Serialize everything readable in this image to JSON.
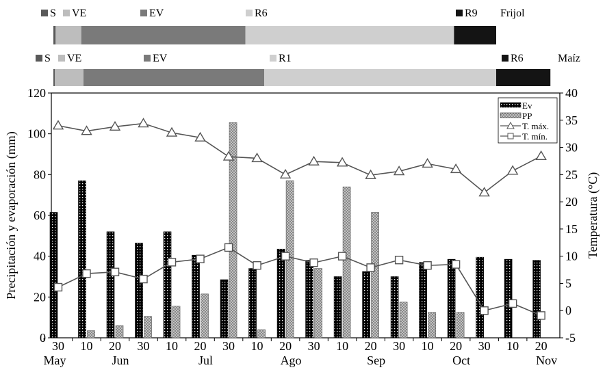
{
  "stage_bars": [
    {
      "crop": "Frijol",
      "stages": [
        {
          "label": "S",
          "color": "#595959",
          "start": 0.0,
          "end": 0.3
        },
        {
          "label": "VE",
          "color": "#bdbdbd",
          "start": 0.3,
          "end": 3.7
        },
        {
          "label": "EV",
          "color": "#7a7a7a",
          "start": 3.7,
          "end": 25.5
        },
        {
          "label": "R6",
          "color": "#cfcfcf",
          "start": 25.5,
          "end": 53.2
        },
        {
          "label": "R9",
          "color": "#141414",
          "start": 53.2,
          "end": 58.8
        }
      ]
    },
    {
      "crop": "Maíz",
      "stages": [
        {
          "label": "S",
          "color": "#595959",
          "start": 0.0,
          "end": 0.2
        },
        {
          "label": "VE",
          "color": "#bdbdbd",
          "start": 0.2,
          "end": 4.0
        },
        {
          "label": "EV",
          "color": "#7a7a7a",
          "start": 4.0,
          "end": 28.0
        },
        {
          "label": "R1",
          "color": "#cfcfcf",
          "start": 28.0,
          "end": 58.8
        },
        {
          "label": "R6",
          "color": "#141414",
          "start": 58.8,
          "end": 66.0
        }
      ]
    }
  ],
  "chart_data": {
    "type": "bar",
    "categories": [
      "30",
      "10",
      "20",
      "30",
      "10",
      "20",
      "30",
      "10",
      "20",
      "30",
      "10",
      "20",
      "30",
      "10",
      "20",
      "30",
      "10",
      "20"
    ],
    "months": [
      "May",
      "Jun",
      "Jul",
      "Ago",
      "Sep",
      "Oct",
      "Nov"
    ],
    "month_positions": [
      0,
      2,
      5,
      8,
      11,
      14,
      17
    ],
    "ylabel": "Precipitación y evaporación (mm)",
    "y2label": "Temperatura (°C)",
    "ylim": [
      0,
      120
    ],
    "yticks": [
      0,
      20,
      40,
      60,
      80,
      100,
      120
    ],
    "y2lim": [
      -5,
      40
    ],
    "y2ticks": [
      -5,
      0,
      5,
      10,
      15,
      20,
      25,
      30,
      35,
      40
    ],
    "series": [
      {
        "name": "Ev",
        "type": "bar",
        "axis": "left",
        "color": "#000000",
        "values": [
          61.5,
          77,
          52,
          46.5,
          52,
          40.5,
          28.5,
          34,
          43.5,
          38,
          30,
          32.5,
          30,
          37,
          38.5,
          39.5,
          38.5,
          38
        ]
      },
      {
        "name": "PP",
        "type": "bar",
        "axis": "left",
        "color": "#bfbfbf",
        "values": [
          0,
          3.5,
          6,
          10.5,
          15.5,
          21.5,
          105.5,
          4,
          77,
          34,
          74,
          61.5,
          17.5,
          12.5,
          12.5,
          0,
          0,
          0
        ]
      },
      {
        "name": "T. máx.",
        "type": "line",
        "axis": "right",
        "marker": "triangle",
        "values": [
          34,
          33,
          33.8,
          34.4,
          32.7,
          31.8,
          28.3,
          28,
          25,
          27.4,
          27.2,
          24.9,
          25.6,
          27,
          26,
          21.7,
          25.7,
          28.4
        ]
      },
      {
        "name": "T. mín.",
        "type": "line",
        "axis": "right",
        "marker": "square",
        "values": [
          4.3,
          6.8,
          7.1,
          5.8,
          8.9,
          9.5,
          11.6,
          8.3,
          10,
          8.8,
          10,
          7.9,
          9.3,
          8.3,
          8.5,
          0,
          1.3,
          -0.9
        ]
      }
    ],
    "legend_position": "top-right"
  }
}
